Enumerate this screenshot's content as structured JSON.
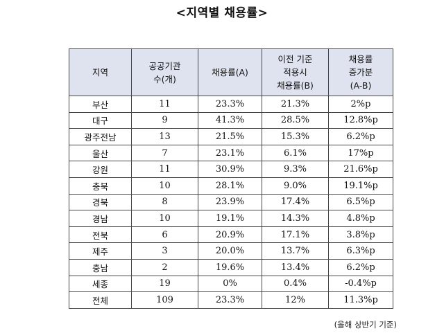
{
  "title": "<지역별 채용률>",
  "table": {
    "headers": [
      [
        "지역"
      ],
      [
        "공공기관",
        "수(개)"
      ],
      [
        "채용률(A)"
      ],
      [
        "이전 기준",
        "적용시",
        "채용률(B)"
      ],
      [
        "채용률",
        "증가분",
        "(A-B)"
      ]
    ],
    "rows": [
      [
        "부산",
        "11",
        "23.3%",
        "21.3%",
        "2%p"
      ],
      [
        "대구",
        "9",
        "41.3%",
        "28.5%",
        "12.8%p"
      ],
      [
        "광주전남",
        "13",
        "21.5%",
        "15.3%",
        "6.2%p"
      ],
      [
        "울산",
        "7",
        "23.1%",
        "6.1%",
        "17%p"
      ],
      [
        "강원",
        "11",
        "30.9%",
        "9.3%",
        "21.6%p"
      ],
      [
        "충북",
        "10",
        "28.1%",
        "9.0%",
        "19.1%p"
      ],
      [
        "경북",
        "8",
        "23.9%",
        "17.4%",
        "6.5%p"
      ],
      [
        "경남",
        "10",
        "19.1%",
        "14.3%",
        "4.8%p"
      ],
      [
        "전북",
        "6",
        "20.9%",
        "17.1%",
        "3.8%p"
      ],
      [
        "제주",
        "3",
        "20.0%",
        "13.7%",
        "6.3%p"
      ],
      [
        "충남",
        "2",
        "19.6%",
        "13.4%",
        "6.2%p"
      ],
      [
        "세종",
        "19",
        "0%",
        "0.4%",
        "-0.4%p"
      ],
      [
        "전체",
        "109",
        "23.3%",
        "12%",
        "11.3%p"
      ]
    ]
  },
  "note": "(올해 상반기 기준)"
}
